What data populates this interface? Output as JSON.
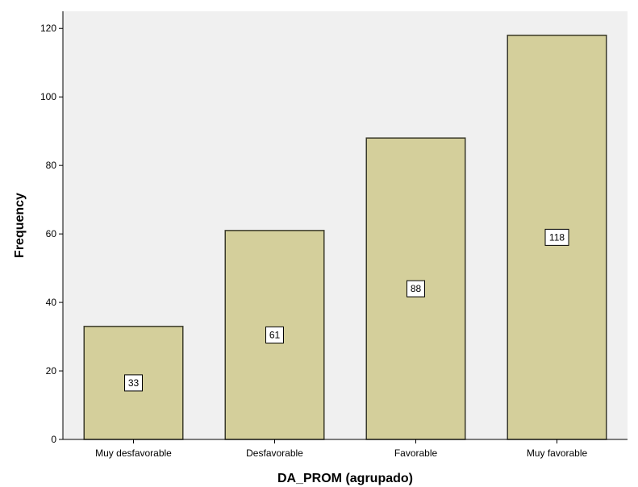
{
  "chart_data": {
    "type": "bar",
    "categories": [
      "Muy desfavorable",
      "Desfavorable",
      "Favorable",
      "Muy favorable"
    ],
    "values": [
      33,
      61,
      88,
      118
    ],
    "data_labels": [
      "33",
      "61",
      "88",
      "118"
    ],
    "xlabel": "DA_PROM (agrupado)",
    "ylabel": "Frequency",
    "ylim": [
      0,
      125
    ],
    "yticks": [
      0,
      20,
      40,
      60,
      80,
      100,
      120
    ],
    "ytick_labels": [
      "0",
      "20",
      "40",
      "60",
      "80",
      "100",
      "120"
    ],
    "grid": false,
    "legend": false
  },
  "colors": {
    "plot_background": "#f0f0f0",
    "bar_fill": "#d4cf9b",
    "bar_stroke": "#3a3a2a",
    "axis": "#000000",
    "label_box_fill": "#ffffff",
    "label_box_stroke": "#000000"
  }
}
